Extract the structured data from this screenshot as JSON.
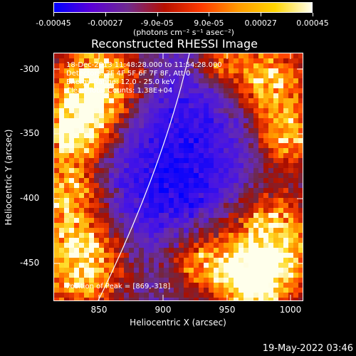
{
  "colorbar": {
    "tick_labels": [
      "-0.00045",
      "-0.00027",
      "-9.0e-05",
      "9.0e-05",
      "0.00027",
      "0.00045"
    ],
    "units": "(photons cm⁻² s⁻¹ asec⁻²)",
    "colors": [
      "#0000ff",
      "#5a00d8",
      "#6f2a8f",
      "#b71000",
      "#ff3a00",
      "#ff9a00",
      "#ffd400",
      "#fffff0"
    ]
  },
  "plot": {
    "title": "Reconstructed RHESSI Image",
    "annotations": [
      "18-Dec-2013 11:48:28.000 to 11:54:28.000",
      "Detectors: 3F 4F 5F 6F 7F 8F, Att 0",
      "Energy Range: 12.0 - 25.0 keV",
      "Clean     Total Counts: 1.38E+04"
    ],
    "peak_label": "Position of Peak = [869,-318]",
    "x_axis": {
      "label": "Heliocentric X (arcsec)",
      "ticks": [
        "850",
        "900",
        "950",
        "1000"
      ],
      "range": [
        815,
        1010
      ]
    },
    "y_axis": {
      "label": "Heliocentric Y (arcsec)",
      "ticks": [
        "-300",
        "-350",
        "-400",
        "-450"
      ],
      "range": [
        -285,
        -480
      ]
    }
  },
  "footer": {
    "timestamp": "19-May-2022 03:46"
  }
}
